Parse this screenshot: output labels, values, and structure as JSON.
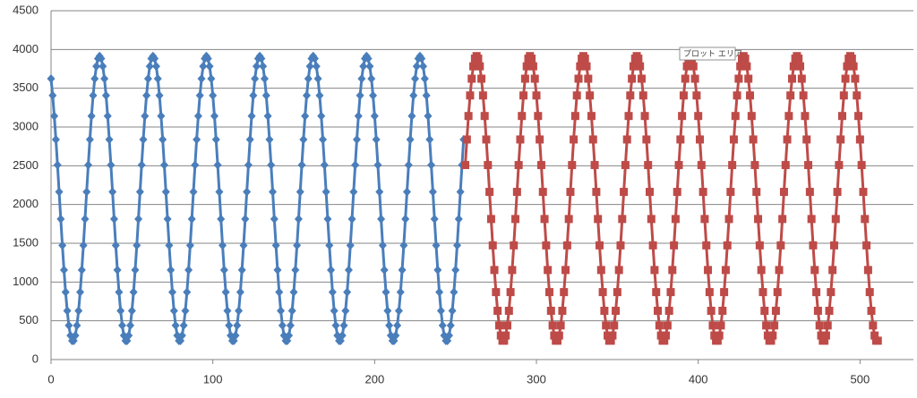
{
  "chart_data": {
    "type": "line",
    "annotations": [
      "プロット エリア"
    ],
    "xlim": [
      0,
      533
    ],
    "xticks": [
      0,
      100,
      200,
      300,
      400,
      500
    ],
    "ylim": [
      0,
      4500
    ],
    "yticks": [
      0,
      500,
      1000,
      1500,
      2000,
      2500,
      3000,
      3500,
      4000,
      4500
    ],
    "grid": true,
    "series": [
      {
        "color": "#4a7ebb",
        "marker": "diamond",
        "x": [
          0,
          1,
          2,
          3,
          4,
          5,
          6,
          7,
          8,
          9,
          10,
          11,
          12,
          13,
          14,
          15,
          16,
          17,
          18,
          19,
          20,
          21,
          22,
          23,
          24,
          25,
          26,
          27,
          28,
          29,
          30,
          31,
          32,
          33,
          34,
          35,
          36,
          37,
          38,
          39,
          40,
          41,
          42,
          43,
          44,
          45,
          46,
          47,
          48,
          49,
          50,
          51,
          52,
          53,
          54,
          55,
          56,
          57,
          58,
          59,
          60,
          61,
          62,
          63,
          64,
          65,
          66,
          67,
          68,
          69,
          70,
          71,
          72,
          73,
          74,
          75,
          76,
          77,
          78,
          79,
          80,
          81,
          82,
          83,
          84,
          85,
          86,
          87,
          88,
          89,
          90,
          91,
          92,
          93,
          94,
          95,
          96,
          97,
          98,
          99,
          100,
          101,
          102,
          103,
          104,
          105,
          106,
          107,
          108,
          109,
          110,
          111,
          112,
          113,
          114,
          115,
          116,
          117,
          118,
          119,
          120,
          121,
          122,
          123,
          124,
          125,
          126,
          127,
          128,
          129,
          130,
          131,
          132,
          133,
          134,
          135,
          136,
          137,
          138,
          139,
          140,
          141,
          142,
          143,
          144,
          145,
          146,
          147,
          148,
          149,
          150,
          151,
          152,
          153,
          154,
          155,
          156,
          157,
          158,
          159,
          160,
          161,
          162,
          163,
          164,
          165,
          166,
          167,
          168,
          169,
          170,
          171,
          172,
          173,
          174,
          175,
          176,
          177,
          178,
          179,
          180,
          181,
          182,
          183,
          184,
          185,
          186,
          187,
          188,
          189,
          190,
          191,
          192,
          193,
          194,
          195,
          196,
          197,
          198,
          199,
          200,
          201,
          202,
          203,
          204,
          205,
          206,
          207,
          208,
          209,
          210,
          211,
          212,
          213,
          214,
          215,
          216,
          217,
          218,
          219,
          220,
          221,
          222,
          223,
          224,
          225,
          226,
          227,
          228,
          229,
          230,
          231,
          232,
          233,
          234,
          235,
          236,
          237,
          238,
          239,
          240,
          241,
          242,
          243,
          244,
          245,
          246,
          247,
          248,
          249,
          250,
          251,
          252,
          253,
          254,
          255
        ],
        "values": [
          3623,
          3407,
          3142,
          2839,
          2509,
          2163,
          1813,
          1473,
          1155,
          870,
          629,
          440,
          310,
          243,
          243,
          310,
          440,
          629,
          870,
          1155,
          1473,
          1813,
          2163,
          2509,
          2839,
          3142,
          3407,
          3623,
          3783,
          3882,
          3915,
          3882,
          3783,
          3623,
          3407,
          3142,
          2839,
          2509,
          2163,
          1813,
          1473,
          1155,
          870,
          629,
          440,
          310,
          243,
          243,
          310,
          440,
          629,
          870,
          1155,
          1473,
          1813,
          2163,
          2509,
          2839,
          3142,
          3407,
          3623,
          3783,
          3882,
          3915,
          3882,
          3783,
          3623,
          3407,
          3142,
          2839,
          2509,
          2163,
          1813,
          1473,
          1155,
          870,
          629,
          440,
          310,
          243,
          243,
          310,
          440,
          629,
          870,
          1155,
          1473,
          1813,
          2163,
          2509,
          2839,
          3142,
          3407,
          3623,
          3783,
          3882,
          3915,
          3882,
          3783,
          3623,
          3407,
          3142,
          2839,
          2509,
          2163,
          1813,
          1473,
          1155,
          870,
          629,
          440,
          310,
          243,
          243,
          310,
          440,
          629,
          870,
          1155,
          1473,
          1813,
          2163,
          2509,
          2839,
          3142,
          3407,
          3623,
          3783,
          3882,
          3915,
          3882,
          3783,
          3623,
          3407,
          3142,
          2839,
          2509,
          2163,
          1813,
          1473,
          1155,
          870,
          629,
          440,
          310,
          243,
          243,
          310,
          440,
          629,
          870,
          1155,
          1473,
          1813,
          2163,
          2509,
          2839,
          3142,
          3407,
          3623,
          3783,
          3882,
          3915,
          3882,
          3783,
          3623,
          3407,
          3142,
          2839,
          2509,
          2163,
          1813,
          1473,
          1155,
          870,
          629,
          440,
          310,
          243,
          243,
          310,
          440,
          629,
          870,
          1155,
          1473,
          1813,
          2163,
          2509,
          2839,
          3142,
          3407,
          3623,
          3783,
          3882,
          3915,
          3882,
          3783,
          3623,
          3407,
          3142,
          2839,
          2509,
          2163,
          1813,
          1473,
          1155,
          870,
          629,
          440,
          310,
          243,
          243,
          310,
          440,
          629,
          870,
          1155,
          1473,
          1813,
          2163,
          2509,
          2839,
          3142,
          3407,
          3623,
          3783,
          3882,
          3915,
          3882,
          3783,
          3623,
          3407,
          3142,
          2839,
          2509,
          2163,
          1813,
          1473,
          1155,
          870,
          629,
          440,
          310,
          243,
          243,
          310,
          440,
          629,
          870,
          1155,
          1473,
          1813,
          2163,
          2509,
          2839
        ]
      },
      {
        "color": "#be4b48",
        "marker": "square",
        "x": [
          256,
          257,
          258,
          259,
          260,
          261,
          262,
          263,
          264,
          265,
          266,
          267,
          268,
          269,
          270,
          271,
          272,
          273,
          274,
          275,
          276,
          277,
          278,
          279,
          280,
          281,
          282,
          283,
          284,
          285,
          286,
          287,
          288,
          289,
          290,
          291,
          292,
          293,
          294,
          295,
          296,
          297,
          298,
          299,
          300,
          301,
          302,
          303,
          304,
          305,
          306,
          307,
          308,
          309,
          310,
          311,
          312,
          313,
          314,
          315,
          316,
          317,
          318,
          319,
          320,
          321,
          322,
          323,
          324,
          325,
          326,
          327,
          328,
          329,
          330,
          331,
          332,
          333,
          334,
          335,
          336,
          337,
          338,
          339,
          340,
          341,
          342,
          343,
          344,
          345,
          346,
          347,
          348,
          349,
          350,
          351,
          352,
          353,
          354,
          355,
          356,
          357,
          358,
          359,
          360,
          361,
          362,
          363,
          364,
          365,
          366,
          367,
          368,
          369,
          370,
          371,
          372,
          373,
          374,
          375,
          376,
          377,
          378,
          379,
          380,
          381,
          382,
          383,
          384,
          385,
          386,
          387,
          388,
          389,
          390,
          391,
          392,
          393,
          394,
          395,
          396,
          397,
          398,
          399,
          400,
          401,
          402,
          403,
          404,
          405,
          406,
          407,
          408,
          409,
          410,
          411,
          412,
          413,
          414,
          415,
          416,
          417,
          418,
          419,
          420,
          421,
          422,
          423,
          424,
          425,
          426,
          427,
          428,
          429,
          430,
          431,
          432,
          433,
          434,
          435,
          436,
          437,
          438,
          439,
          440,
          441,
          442,
          443,
          444,
          445,
          446,
          447,
          448,
          449,
          450,
          451,
          452,
          453,
          454,
          455,
          456,
          457,
          458,
          459,
          460,
          461,
          462,
          463,
          464,
          465,
          466,
          467,
          468,
          469,
          470,
          471,
          472,
          473,
          474,
          475,
          476,
          477,
          478,
          479,
          480,
          481,
          482,
          483,
          484,
          485,
          486,
          487,
          488,
          489,
          490,
          491,
          492,
          493,
          494,
          495,
          496,
          497,
          498,
          499,
          500,
          501,
          502,
          503,
          504,
          505,
          506,
          507,
          508,
          509,
          510,
          511
        ],
        "values": [
          2509,
          2839,
          3142,
          3407,
          3623,
          3783,
          3882,
          3915,
          3882,
          3783,
          3623,
          3407,
          3142,
          2839,
          2509,
          2163,
          1813,
          1473,
          1155,
          870,
          629,
          440,
          310,
          243,
          243,
          310,
          440,
          629,
          870,
          1155,
          1473,
          1813,
          2163,
          2509,
          2839,
          3142,
          3407,
          3623,
          3783,
          3882,
          3915,
          3882,
          3783,
          3623,
          3407,
          3142,
          2839,
          2509,
          2163,
          1813,
          1473,
          1155,
          870,
          629,
          440,
          310,
          243,
          243,
          310,
          440,
          629,
          870,
          1155,
          1473,
          1813,
          2163,
          2509,
          2839,
          3142,
          3407,
          3623,
          3783,
          3882,
          3915,
          3882,
          3783,
          3623,
          3407,
          3142,
          2839,
          2509,
          2163,
          1813,
          1473,
          1155,
          870,
          629,
          440,
          310,
          243,
          243,
          310,
          440,
          629,
          870,
          1155,
          1473,
          1813,
          2163,
          2509,
          2839,
          3142,
          3407,
          3623,
          3783,
          3882,
          3915,
          3882,
          3783,
          3623,
          3407,
          3142,
          2839,
          2509,
          2163,
          1813,
          1473,
          1155,
          870,
          629,
          440,
          310,
          243,
          243,
          310,
          440,
          629,
          870,
          1155,
          1473,
          1813,
          2163,
          2509,
          2839,
          3142,
          3407,
          3623,
          3783,
          3882,
          3915,
          3882,
          3783,
          3623,
          3407,
          3142,
          2839,
          2509,
          2163,
          1813,
          1473,
          1155,
          870,
          629,
          440,
          310,
          243,
          243,
          310,
          440,
          629,
          870,
          1155,
          1473,
          1813,
          2163,
          2509,
          2839,
          3142,
          3407,
          3623,
          3783,
          3882,
          3915,
          3882,
          3783,
          3623,
          3407,
          3142,
          2839,
          2509,
          2163,
          1813,
          1473,
          1155,
          870,
          629,
          440,
          310,
          243,
          243,
          310,
          440,
          629,
          870,
          1155,
          1473,
          1813,
          2163,
          2509,
          2839,
          3142,
          3407,
          3623,
          3783,
          3882,
          3915,
          3882,
          3783,
          3623,
          3407,
          3142,
          2839,
          2509,
          2163,
          1813,
          1473,
          1155,
          870,
          629,
          440,
          310,
          243,
          243,
          310,
          440,
          629,
          870,
          1155,
          1473,
          1813,
          2163,
          2509,
          2839,
          3142,
          3407,
          3623,
          3783,
          3882,
          3915,
          3882,
          3783,
          3623,
          3407,
          3142,
          2839,
          2509,
          2163,
          1813,
          1473,
          1155,
          870,
          629,
          440,
          310,
          243,
          243
        ]
      }
    ]
  }
}
